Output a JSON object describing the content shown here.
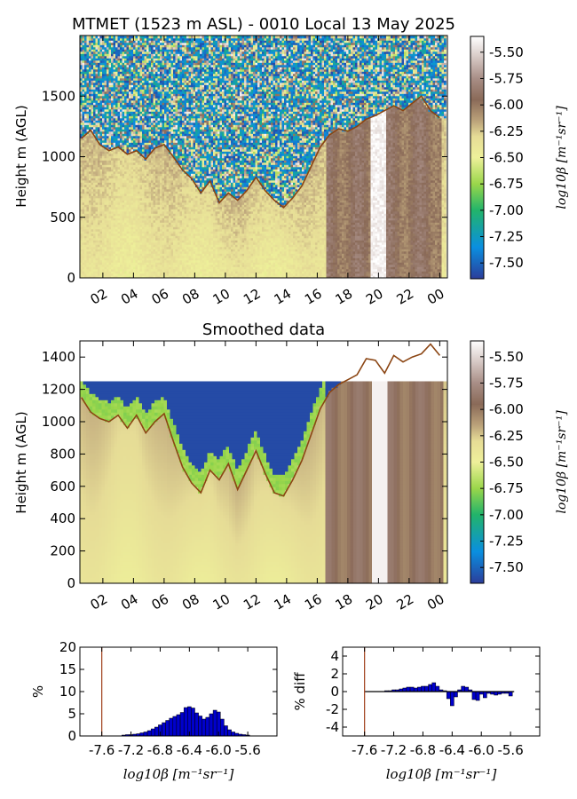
{
  "figure": {
    "title": "MTMET (1523 m ASL) - 0010 Local 13 May 2025",
    "subtitle": "Smoothed data"
  },
  "colorbar": {
    "ticks": [
      "-5.50",
      "-5.75",
      "-6.00",
      "-6.25",
      "-6.50",
      "-6.75",
      "-7.00",
      "-7.25",
      "-7.50"
    ],
    "tick_values": [
      -5.5,
      -5.75,
      -6.0,
      -6.25,
      -6.5,
      -6.75,
      -7.0,
      -7.25,
      -7.5
    ],
    "range": [
      -7.65,
      -5.35
    ],
    "label": "log10β [m⁻¹sr⁻¹]",
    "colors": [
      "#2b3d9a",
      "#0a8fe0",
      "#22b46a",
      "#9ad64a",
      "#eef09a",
      "#e6dc96",
      "#bba27a",
      "#8a6a58",
      "#a88e86",
      "#d6c8c4",
      "#ffffff"
    ],
    "color_stops": [
      -7.65,
      -7.35,
      -7.0,
      -6.75,
      -6.5,
      -6.3,
      -6.15,
      -5.95,
      -5.75,
      -5.55,
      -5.35
    ]
  },
  "chart_data": [
    {
      "type": "heatmap",
      "title": "MTMET (1523 m ASL) - 0010 Local 13 May 2025",
      "xlabel": "",
      "ylabel": "Height m (AGL)",
      "x_range_hours": [
        0.5,
        24.5
      ],
      "ylim": [
        0,
        2000
      ],
      "x_ticks": [
        "02",
        "04",
        "06",
        "08",
        "10",
        "12",
        "14",
        "16",
        "18",
        "20",
        "22",
        "00"
      ],
      "x_tick_values": [
        2,
        4,
        6,
        8,
        10,
        12,
        14,
        16,
        18,
        20,
        22,
        24
      ],
      "y_ticks": [
        "0",
        "500",
        "1000",
        "1500"
      ],
      "y_tick_values": [
        0,
        500,
        1000,
        1500
      ],
      "noisy": true,
      "top_cap_m": null,
      "boundary_layer_line": {
        "color": "#8b4513",
        "x": [
          0.6,
          1.2,
          1.8,
          2.4,
          3.0,
          3.6,
          4.2,
          4.8,
          5.4,
          6.0,
          6.6,
          7.2,
          7.8,
          8.4,
          9.0,
          9.6,
          10.2,
          10.8,
          11.4,
          12.0,
          12.6,
          13.2,
          13.8,
          14.4,
          15.0,
          15.6,
          16.2,
          16.8,
          17.4,
          18.0,
          18.6,
          19.2,
          19.8,
          20.4,
          21.0,
          21.6,
          22.2,
          22.8,
          23.4,
          24.0
        ],
        "y": [
          1150,
          1220,
          1100,
          1050,
          1080,
          1020,
          1050,
          980,
          1070,
          1100,
          1000,
          890,
          820,
          700,
          800,
          620,
          700,
          640,
          720,
          830,
          720,
          640,
          580,
          660,
          760,
          920,
          1080,
          1180,
          1230,
          1210,
          1250,
          1310,
          1340,
          1380,
          1420,
          1380,
          1440,
          1500,
          1380,
          1320
        ]
      }
    },
    {
      "type": "heatmap",
      "title": "Smoothed data",
      "xlabel": "",
      "ylabel": "Height m (AGL)",
      "x_range_hours": [
        0.5,
        24.5
      ],
      "ylim": [
        0,
        1500
      ],
      "x_ticks": [
        "02",
        "04",
        "06",
        "08",
        "10",
        "12",
        "14",
        "16",
        "18",
        "20",
        "22",
        "00"
      ],
      "x_tick_values": [
        2,
        4,
        6,
        8,
        10,
        12,
        14,
        16,
        18,
        20,
        22,
        24
      ],
      "y_ticks": [
        "0",
        "200",
        "400",
        "600",
        "800",
        "1000",
        "1200",
        "1400"
      ],
      "y_tick_values": [
        0,
        200,
        400,
        600,
        800,
        1000,
        1200,
        1400
      ],
      "noisy": false,
      "top_cap_m": 1250,
      "boundary_layer_line": {
        "color": "#8b4513",
        "x": [
          0.6,
          1.2,
          1.8,
          2.4,
          3.0,
          3.6,
          4.2,
          4.8,
          5.4,
          6.0,
          6.6,
          7.2,
          7.8,
          8.4,
          9.0,
          9.6,
          10.2,
          10.8,
          11.4,
          12.0,
          12.6,
          13.2,
          13.8,
          14.4,
          15.0,
          15.6,
          16.2,
          16.8,
          17.4,
          18.0,
          18.6,
          19.2,
          19.8,
          20.4,
          21.0,
          21.6,
          22.2,
          22.8,
          23.4,
          24.0
        ],
        "y": [
          1150,
          1060,
          1020,
          1000,
          1040,
          960,
          1040,
          930,
          1000,
          1050,
          880,
          720,
          620,
          560,
          700,
          640,
          740,
          580,
          700,
          820,
          680,
          560,
          540,
          640,
          760,
          920,
          1080,
          1180,
          1230,
          1260,
          1290,
          1390,
          1380,
          1300,
          1410,
          1370,
          1400,
          1420,
          1480,
          1410
        ]
      }
    },
    {
      "type": "bar",
      "title": "",
      "xlabel": "log10β [m⁻¹sr⁻¹]",
      "ylabel": "%",
      "xlim": [
        -7.9,
        -5.2
      ],
      "ylim": [
        0,
        20
      ],
      "x_ticks": [
        "-7.6",
        "-7.2",
        "-6.8",
        "-6.4",
        "-6.0",
        "-5.6"
      ],
      "x_tick_values": [
        -7.6,
        -7.2,
        -6.8,
        -6.4,
        -6.0,
        -5.6
      ],
      "y_ticks": [
        "0",
        "5",
        "10",
        "15",
        "20"
      ],
      "y_tick_values": [
        0,
        5,
        10,
        15,
        20
      ],
      "bar_color": "#0000cc",
      "bin_width": 0.05,
      "x": [
        -7.3,
        -7.25,
        -7.2,
        -7.15,
        -7.1,
        -7.05,
        -7.0,
        -6.95,
        -6.9,
        -6.85,
        -6.8,
        -6.75,
        -6.7,
        -6.65,
        -6.6,
        -6.55,
        -6.5,
        -6.45,
        -6.4,
        -6.35,
        -6.3,
        -6.25,
        -6.2,
        -6.15,
        -6.1,
        -6.05,
        -6.0,
        -5.95,
        -5.9,
        -5.85,
        -5.8,
        -5.75,
        -5.7,
        -5.65,
        -5.6
      ],
      "values": [
        0.2,
        0.3,
        0.3,
        0.4,
        0.5,
        0.7,
        0.9,
        1.2,
        1.6,
        2.0,
        2.5,
        3.0,
        3.5,
        4.0,
        4.4,
        4.8,
        5.3,
        6.4,
        6.6,
        6.3,
        5.2,
        4.5,
        3.8,
        4.2,
        5.0,
        5.8,
        5.4,
        3.8,
        2.3,
        1.4,
        0.9,
        0.6,
        0.4,
        0.3,
        0.2
      ],
      "vline": {
        "x": -7.6,
        "color": "#a0401a"
      }
    },
    {
      "type": "bar",
      "title": "",
      "xlabel": "log10β [m⁻¹sr⁻¹]",
      "ylabel": "% diff",
      "xlim": [
        -7.9,
        -5.2
      ],
      "ylim": [
        -5,
        5
      ],
      "x_ticks": [
        "-7.6",
        "-7.2",
        "-6.8",
        "-6.4",
        "-6.0",
        "-5.6"
      ],
      "x_tick_values": [
        -7.6,
        -7.2,
        -6.8,
        -6.4,
        -6.0,
        -5.6
      ],
      "y_ticks": [
        "4",
        "2",
        "0",
        "-2",
        "-4"
      ],
      "y_tick_values": [
        4,
        2,
        0,
        -2,
        -4
      ],
      "bar_color": "#0000cc",
      "bin_width": 0.05,
      "x": [
        -7.3,
        -7.25,
        -7.2,
        -7.15,
        -7.1,
        -7.05,
        -7.0,
        -6.95,
        -6.9,
        -6.85,
        -6.8,
        -6.75,
        -6.7,
        -6.65,
        -6.6,
        -6.55,
        -6.5,
        -6.45,
        -6.4,
        -6.35,
        -6.3,
        -6.25,
        -6.2,
        -6.15,
        -6.1,
        -6.05,
        -6.0,
        -5.95,
        -5.9,
        -5.85,
        -5.8,
        -5.75,
        -5.7,
        -5.65,
        -5.6
      ],
      "values": [
        0.1,
        0.1,
        0.2,
        0.2,
        0.3,
        0.4,
        0.5,
        0.5,
        0.4,
        0.5,
        0.6,
        0.6,
        0.8,
        1.0,
        0.6,
        0.2,
        0.1,
        -0.8,
        -1.6,
        -0.6,
        0.2,
        0.6,
        0.5,
        0.2,
        -0.9,
        -1.0,
        -0.3,
        -0.7,
        -0.2,
        -0.3,
        -0.4,
        -0.3,
        -0.2,
        -0.2,
        -0.5
      ],
      "zero_line_x": [
        -7.6,
        -5.55
      ],
      "vline": {
        "x": -7.6,
        "color": "#a0401a"
      }
    }
  ]
}
